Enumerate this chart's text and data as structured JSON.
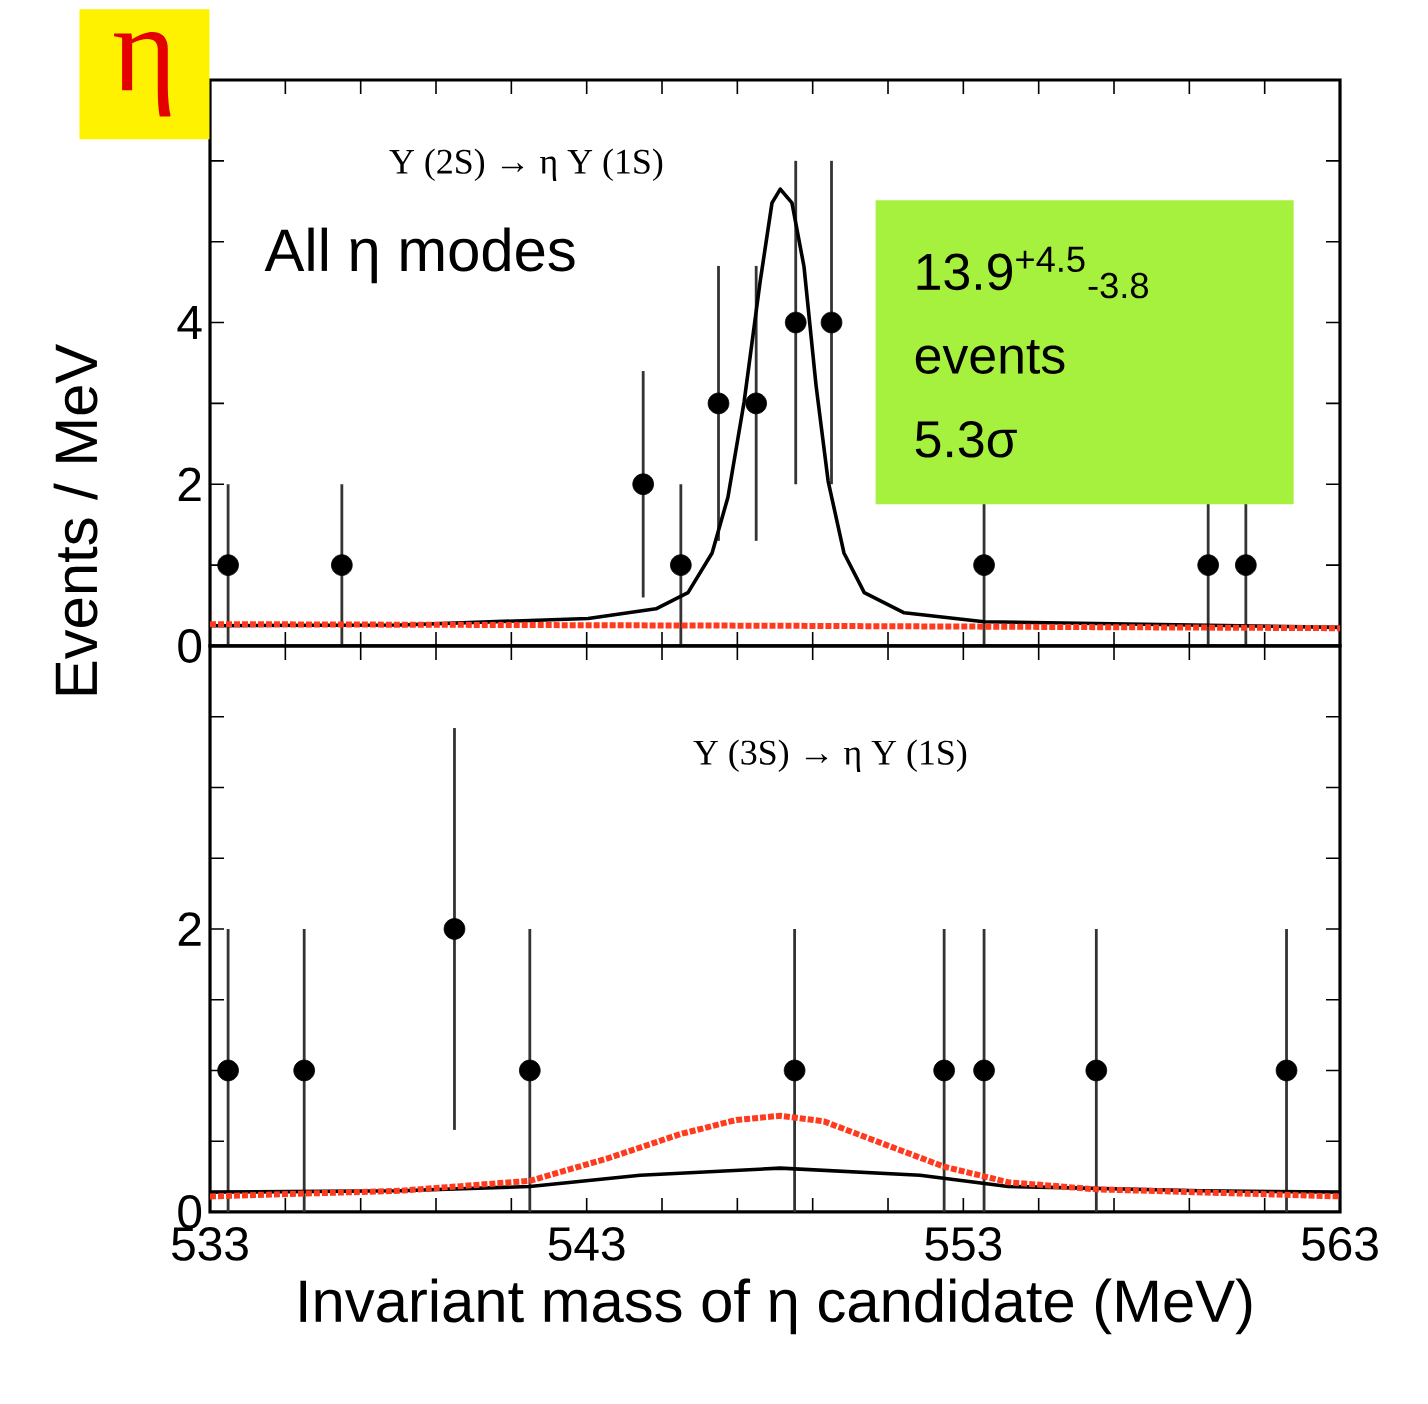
{
  "chart_data": [
    {
      "type": "scatter",
      "title": "Υ (2S) → η Υ (1S)",
      "ylabel": "Events / MeV",
      "annotations": [
        "η",
        "All η modes",
        "13.9$^{+4.5}$$_{-3.8}$",
        "events",
        "5.3σ"
      ],
      "xlim": [
        533,
        563
      ],
      "ylim": [
        0,
        7
      ],
      "xticks": [
        533,
        {
          "value": 535,
          "label": null
        },
        {
          "value": 537,
          "label": null
        },
        {
          "value": 539,
          "label": null
        },
        {
          "value": 541,
          "label": null
        },
        543,
        {
          "value": 545,
          "label": null
        },
        {
          "value": 547,
          "label": null
        },
        {
          "value": 549,
          "label": null
        },
        {
          "value": 551,
          "label": null
        },
        553,
        {
          "value": 555,
          "label": null
        },
        {
          "value": 557,
          "label": null
        },
        {
          "value": 559,
          "label": null
        },
        {
          "value": 561,
          "label": null
        },
        563
      ],
      "yticks": [
        0,
        {
          "value": 1,
          "label": null
        },
        2,
        {
          "value": 3,
          "label": null
        },
        4,
        {
          "value": 5,
          "label": null
        },
        {
          "value": 6,
          "label": null
        }
      ],
      "tick_labels": "y",
      "series": [
        {
          "color": "#000000",
          "marker": "circle",
          "x": [
            533.48,
            536.5,
            544.5,
            545.5,
            546.5,
            547.5,
            548.55,
            549.5,
            553.55,
            559.5,
            560.5
          ],
          "values": [
            1,
            1,
            2,
            1,
            3,
            3,
            4,
            4,
            1,
            1,
            1
          ],
          "errors": [
            1,
            1,
            1.4,
            1,
            1.7,
            1.7,
            2,
            2,
            1,
            1,
            1
          ]
        },
        {
          "type": "line",
          "color": "#000000",
          "marker": "none",
          "line_style": "solid",
          "x": [
            533.0,
            538.05,
            543.04,
            544.84,
            545.69,
            546.33,
            546.75,
            547.18,
            547.6,
            547.92,
            548.14,
            548.45,
            548.77,
            549.09,
            549.41,
            549.83,
            550.37,
            551.43,
            553.55,
            563.0
          ],
          "values": [
            0.25,
            0.26,
            0.34,
            0.46,
            0.66,
            1.15,
            1.84,
            3.02,
            4.49,
            5.48,
            5.65,
            5.48,
            4.69,
            3.22,
            2.04,
            1.15,
            0.66,
            0.41,
            0.3,
            0.23
          ]
        },
        {
          "type": "line",
          "color": "#ff3b1f",
          "marker": "none",
          "line_style": "dotted",
          "x": [
            533.0,
            548.0,
            563.0
          ],
          "values": [
            0.27,
            0.25,
            0.22
          ]
        }
      ]
    },
    {
      "type": "scatter",
      "title": "Υ (3S) → η Υ (1S)",
      "xlabel": "Invariant mass of η candidate (MeV)",
      "xlim": [
        533,
        563
      ],
      "ylim": [
        0,
        4
      ],
      "xticks": [
        533,
        {
          "value": 535,
          "label": null
        },
        {
          "value": 537,
          "label": null
        },
        {
          "value": 539,
          "label": null
        },
        {
          "value": 541,
          "label": null
        },
        543,
        {
          "value": 545,
          "label": null
        },
        {
          "value": 547,
          "label": null
        },
        {
          "value": 549,
          "label": null
        },
        {
          "value": 551,
          "label": null
        },
        553,
        {
          "value": 555,
          "label": null
        },
        {
          "value": 557,
          "label": null
        },
        {
          "value": 559,
          "label": null
        },
        {
          "value": 561,
          "label": null
        },
        563
      ],
      "yticks": [
        0,
        {
          "value": 0.5,
          "label": null
        },
        {
          "value": 1,
          "label": null
        },
        {
          "value": 1.5,
          "label": null
        },
        2,
        {
          "value": 2.5,
          "label": null
        },
        {
          "value": 3,
          "label": null
        },
        {
          "value": 3.5,
          "label": null
        }
      ],
      "series": [
        {
          "color": "#000000",
          "marker": "circle",
          "x": [
            533.48,
            535.5,
            539.49,
            541.49,
            548.52,
            552.49,
            553.55,
            556.53,
            561.58
          ],
          "values": [
            1,
            1,
            2,
            1,
            1,
            1,
            1,
            1,
            1
          ],
          "errors": [
            1,
            1,
            1.42,
            1,
            1,
            1,
            1,
            1,
            1
          ]
        },
        {
          "type": "line",
          "color": "#000000",
          "marker": "none",
          "line_style": "solid",
          "x": [
            533.0,
            538.05,
            541.49,
            544.42,
            548.14,
            551.85,
            554.19,
            559.29,
            563.0
          ],
          "values": [
            0.14,
            0.15,
            0.18,
            0.26,
            0.31,
            0.26,
            0.18,
            0.15,
            0.14
          ]
        },
        {
          "type": "line",
          "color": "#ff3b1f",
          "marker": "none",
          "line_style": "dotted",
          "x": [
            533.0,
            538.05,
            541.49,
            543.57,
            545.48,
            546.97,
            548.14,
            549.3,
            550.79,
            552.49,
            554.19,
            556.53,
            563.0
          ],
          "values": [
            0.11,
            0.15,
            0.22,
            0.38,
            0.55,
            0.65,
            0.68,
            0.64,
            0.49,
            0.32,
            0.21,
            0.16,
            0.11
          ]
        }
      ]
    }
  ]
}
